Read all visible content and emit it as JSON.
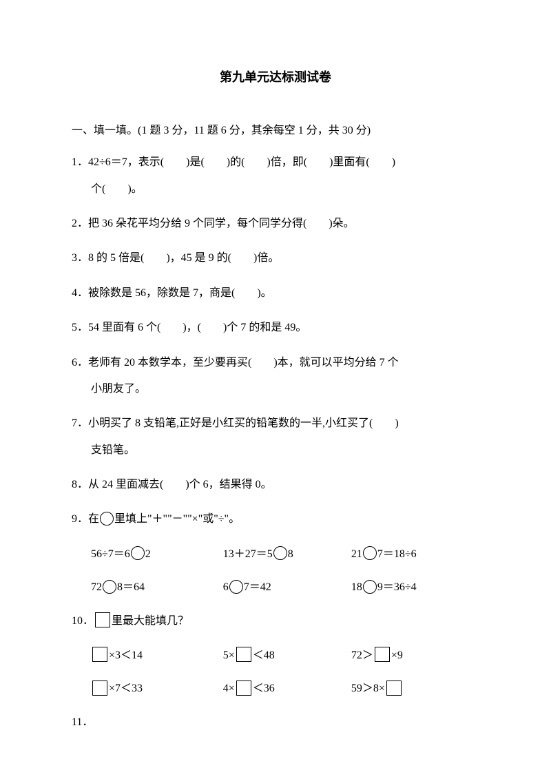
{
  "title": "第九单元达标测试卷",
  "section1": {
    "header": "一、填一填。(1 题 3 分，11 题 6 分，其余每空 1 分，共 30 分)",
    "q1": "1．42÷6＝7，表示(　　)是(　　)的(　　)倍，即(　　)里面有(　　)",
    "q1b": "个(　　)。",
    "q2": "2．把 36 朵花平均分给 9 个同学，每个同学分得(　　)朵。",
    "q3": "3．8 的 5 倍是(　　)，45 是 9 的(　　)倍。",
    "q4": "4．被除数是 56，除数是 7，商是(　　)。",
    "q5": "5．54 里面有 6 个(　　)，(　　)个 7 的和是 49。",
    "q6": "6．老师有 20 本数学本，至少要再买(　　)本，就可以平均分给 7 个",
    "q6b": "小朋友了。",
    "q7": "7．小明买了 8 支铅笔,正好是小红买的铅笔数的一半,小红买了(　　)",
    "q7b": "支铅笔。",
    "q8": "8．从 24 里面减去(　　)个 6，结果得 0。",
    "q9": {
      "header_pre": "9．在",
      "header_post": "里填上\"＋\"\"－\"\"×\"或\"÷\"。",
      "r1c1a": "56÷7＝6",
      "r1c1b": "2",
      "r1c2a": "13＋27＝5",
      "r1c2b": "8",
      "r1c3a": "21",
      "r1c3b": "7＝18÷6",
      "r2c1a": "72",
      "r2c1b": "8＝64",
      "r2c2a": "6",
      "r2c2b": "7＝42",
      "r2c3a": "18",
      "r2c3b": "9＝36÷4"
    },
    "q10": {
      "header_pre": "10．",
      "header_post": "里最大能填几？",
      "r1c1a": "×3＜14",
      "r1c2a": "5×",
      "r1c2b": "＜48",
      "r1c3a": "72＞",
      "r1c3b": "×9",
      "r2c1a": "×7＜33",
      "r2c2a": "4×",
      "r2c2b": "＜36",
      "r2c3a": "59＞8×"
    },
    "q11": "11．"
  }
}
